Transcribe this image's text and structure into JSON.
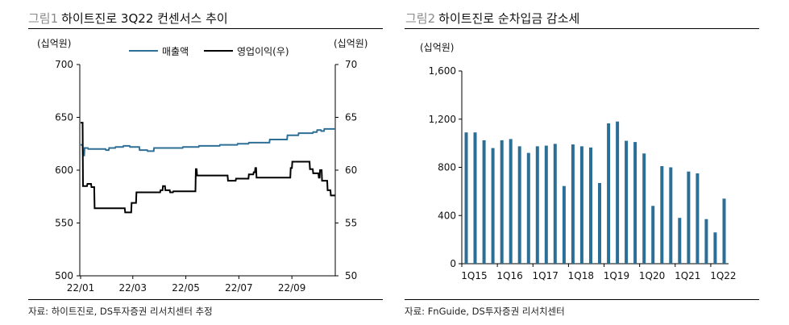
{
  "left": {
    "fig_num": "그림1",
    "title": "하이트진로 3Q22 컨센서스 추이",
    "source": "자료: 하이트진로, DS투자증권 리서치센터 추정",
    "unit_left": "(십억원)",
    "unit_right": "(십억원)"
  },
  "right": {
    "fig_num": "그림2",
    "title": "하이트진로 순차입금 감소세",
    "source": "자료: FnGuide, DS투자증권 리서치센터",
    "unit_left": "(십억원)"
  },
  "colors": {
    "sales": "#2e6f96",
    "op": "#000000",
    "bar": "#2b6e96",
    "axis": "#000000"
  },
  "chart_data": [
    {
      "type": "line",
      "title": "하이트진로 3Q22 컨센서스 추이",
      "xlabel": "",
      "ylabel": "(십억원)",
      "y2label": "(십억원)",
      "ylim": [
        500,
        700
      ],
      "y2lim": [
        50,
        70
      ],
      "yticks": [
        500,
        550,
        600,
        650,
        700
      ],
      "y2ticks": [
        50,
        55,
        60,
        65,
        70
      ],
      "xtick_labels": [
        "22/01",
        "22/03",
        "22/05",
        "22/07",
        "22/09"
      ],
      "legend_position": "top",
      "series": [
        {
          "name": "매출액",
          "axis": "left",
          "points": [
            [
              1.0,
              624
            ],
            [
              3.5,
              624
            ],
            [
              4.0,
              614
            ],
            [
              5.5,
              614
            ],
            [
              6.0,
              621
            ],
            [
              10.0,
              621
            ],
            [
              10.5,
              620
            ],
            [
              32.0,
              620
            ],
            [
              32.5,
              619
            ],
            [
              36.0,
              619
            ],
            [
              36.5,
              621
            ],
            [
              44.0,
              621
            ],
            [
              44.5,
              622
            ],
            [
              54.0,
              622
            ],
            [
              54.5,
              623
            ],
            [
              62.0,
              623
            ],
            [
              62.5,
              622
            ],
            [
              74.0,
              622
            ],
            [
              74.5,
              619
            ],
            [
              84.0,
              619
            ],
            [
              84.5,
              618
            ],
            [
              92.0,
              618
            ],
            [
              92.5,
              621
            ],
            [
              128.0,
              621
            ],
            [
              128.5,
              622
            ],
            [
              148.0,
              622
            ],
            [
              148.5,
              623
            ],
            [
              174.0,
              623
            ],
            [
              174.5,
              624
            ],
            [
              196.0,
              624
            ],
            [
              196.5,
              625
            ],
            [
              210.0,
              625
            ],
            [
              210.5,
              626
            ],
            [
              236.0,
              626
            ],
            [
              236.5,
              629
            ],
            [
              258.0,
              629
            ],
            [
              258.5,
              633
            ],
            [
              272.0,
              633
            ],
            [
              272.5,
              635
            ],
            [
              290.0,
              635
            ],
            [
              290.5,
              636
            ],
            [
              295.0,
              636
            ],
            [
              295.5,
              638
            ],
            [
              300.0,
              638
            ],
            [
              300.5,
              637
            ],
            [
              304.0,
              637
            ],
            [
              304.5,
              639
            ],
            [
              318.0,
              639
            ]
          ]
        },
        {
          "name": "영업이익(우)",
          "axis": "right",
          "points": [
            [
              1.0,
              64.5
            ],
            [
              3.5,
              64.5
            ],
            [
              4.0,
              58.5
            ],
            [
              9.0,
              58.5
            ],
            [
              9.5,
              58.7
            ],
            [
              14.0,
              58.7
            ],
            [
              14.5,
              58.4
            ],
            [
              18.0,
              58.4
            ],
            [
              18.5,
              56.4
            ],
            [
              56.0,
              56.4
            ],
            [
              56.5,
              56.0
            ],
            [
              64.0,
              56.0
            ],
            [
              64.5,
              56.9
            ],
            [
              70.0,
              56.9
            ],
            [
              70.5,
              57.9
            ],
            [
              100.0,
              57.9
            ],
            [
              100.5,
              58.1
            ],
            [
              103.0,
              58.1
            ],
            [
              103.5,
              58.5
            ],
            [
              106.0,
              58.5
            ],
            [
              106.5,
              58.1
            ],
            [
              112.0,
              58.1
            ],
            [
              112.5,
              57.9
            ],
            [
              116.0,
              57.9
            ],
            [
              116.5,
              58.0
            ],
            [
              144.0,
              58.0
            ],
            [
              144.5,
              60.1
            ],
            [
              145.5,
              60.1
            ],
            [
              146.0,
              59.5
            ],
            [
              184.0,
              59.5
            ],
            [
              184.5,
              59.0
            ],
            [
              194.0,
              59.0
            ],
            [
              194.5,
              59.2
            ],
            [
              210.0,
              59.2
            ],
            [
              210.5,
              59.6
            ],
            [
              216.0,
              59.6
            ],
            [
              216.5,
              59.8
            ],
            [
              218.0,
              59.8
            ],
            [
              218.5,
              60.2
            ],
            [
              219.5,
              60.2
            ],
            [
              220.0,
              59.3
            ],
            [
              262.0,
              59.3
            ],
            [
              262.5,
              60.2
            ],
            [
              264.0,
              60.2
            ],
            [
              264.5,
              60.8
            ],
            [
              286.0,
              60.8
            ],
            [
              286.5,
              60.1
            ],
            [
              290.0,
              60.1
            ],
            [
              290.5,
              59.7
            ],
            [
              297.0,
              59.7
            ],
            [
              297.5,
              59.3
            ],
            [
              298.5,
              59.3
            ],
            [
              299.0,
              60.0
            ],
            [
              301.0,
              60.0
            ],
            [
              301.5,
              59.0
            ],
            [
              308.0,
              59.0
            ],
            [
              308.5,
              58.1
            ],
            [
              312.0,
              58.1
            ],
            [
              312.5,
              57.6
            ],
            [
              318.0,
              57.6
            ]
          ]
        }
      ]
    },
    {
      "type": "bar",
      "title": "하이트진로 순차입금 감소세",
      "xlabel": "",
      "ylabel": "(십억원)",
      "ylim": [
        0,
        1600
      ],
      "yticks": [
        0,
        400,
        800,
        1200,
        1600
      ],
      "ytick_labels": [
        "0",
        "400",
        "800",
        "1,200",
        "1,600"
      ],
      "xtick_labels": [
        "1Q15",
        "1Q16",
        "1Q17",
        "1Q18",
        "1Q19",
        "1Q20",
        "1Q21",
        "1Q22"
      ],
      "categories": [
        "1Q15",
        "2Q15",
        "3Q15",
        "4Q15",
        "1Q16",
        "2Q16",
        "3Q16",
        "4Q16",
        "1Q17",
        "2Q17",
        "3Q17",
        "4Q17",
        "1Q18",
        "2Q18",
        "3Q18",
        "4Q18",
        "1Q19",
        "2Q19",
        "3Q19",
        "4Q19",
        "1Q20",
        "2Q20",
        "3Q20",
        "4Q20",
        "1Q21",
        "2Q21",
        "3Q21",
        "4Q21",
        "1Q22",
        "2Q22"
      ],
      "values": [
        1090,
        1090,
        1025,
        960,
        1025,
        1035,
        975,
        920,
        975,
        980,
        995,
        645,
        990,
        975,
        965,
        670,
        1165,
        1180,
        1020,
        1010,
        915,
        480,
        810,
        800,
        380,
        765,
        750,
        370,
        260,
        540
      ]
    }
  ]
}
